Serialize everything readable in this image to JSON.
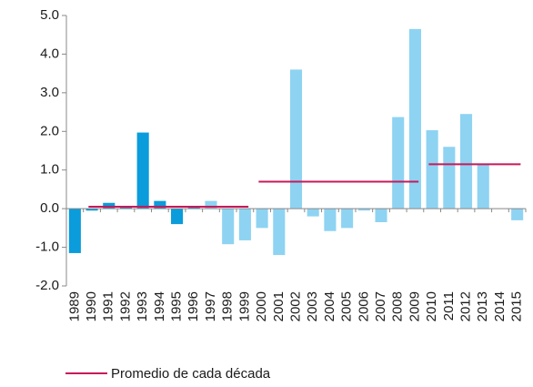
{
  "chart_data": {
    "type": "bar",
    "categories": [
      "1989",
      "1990",
      "1991",
      "1992",
      "1993",
      "1994",
      "1995",
      "1996",
      "1997",
      "1998",
      "1999",
      "2000",
      "2001",
      "2002",
      "2003",
      "2004",
      "2005",
      "2006",
      "2007",
      "2008",
      "2009",
      "2010",
      "2011",
      "2012",
      "2013",
      "2014",
      "2015"
    ],
    "values": [
      -1.15,
      -0.05,
      0.15,
      0.05,
      1.97,
      0.2,
      -0.4,
      0.05,
      0.2,
      -0.92,
      -0.82,
      -0.5,
      -1.2,
      3.6,
      -0.2,
      -0.58,
      -0.5,
      -0.05,
      -0.35,
      2.37,
      4.65,
      2.03,
      1.6,
      2.45,
      1.15,
      0,
      -0.3
    ],
    "colors": [
      "#0a9cdb",
      "#0a9cdb",
      "#0a9cdb",
      "#0a9cdb",
      "#0a9cdb",
      "#0a9cdb",
      "#0a9cdb",
      "#0a9cdb",
      "#8ed3f2",
      "#8ed3f2",
      "#8ed3f2",
      "#8ed3f2",
      "#8ed3f2",
      "#8ed3f2",
      "#8ed3f2",
      "#8ed3f2",
      "#8ed3f2",
      "#8ed3f2",
      "#8ed3f2",
      "#8ed3f2",
      "#8ed3f2",
      "#8ed3f2",
      "#8ed3f2",
      "#8ed3f2",
      "#8ed3f2",
      "#8ed3f2",
      "#8ed3f2"
    ],
    "ylim": [
      -2,
      5
    ],
    "yticks": [
      {
        "value": -2,
        "label": "-2.0"
      },
      {
        "value": -1,
        "label": "-1.0"
      },
      {
        "value": 0,
        "label": "0.0"
      },
      {
        "value": 1,
        "label": "1.0"
      },
      {
        "value": 2,
        "label": "2.0"
      },
      {
        "value": 3,
        "label": "3.0"
      },
      {
        "value": 4,
        "label": "4.0"
      },
      {
        "value": 5,
        "label": "5.0"
      }
    ],
    "averages": {
      "name": "Promedio de cada década",
      "color": "#c8195a",
      "segments": [
        {
          "from": "1990",
          "to": "1999",
          "value": 0.05
        },
        {
          "from": "2000",
          "to": "2009",
          "value": 0.7
        },
        {
          "from": "2010",
          "to": "2015",
          "value": 1.15
        }
      ]
    }
  }
}
